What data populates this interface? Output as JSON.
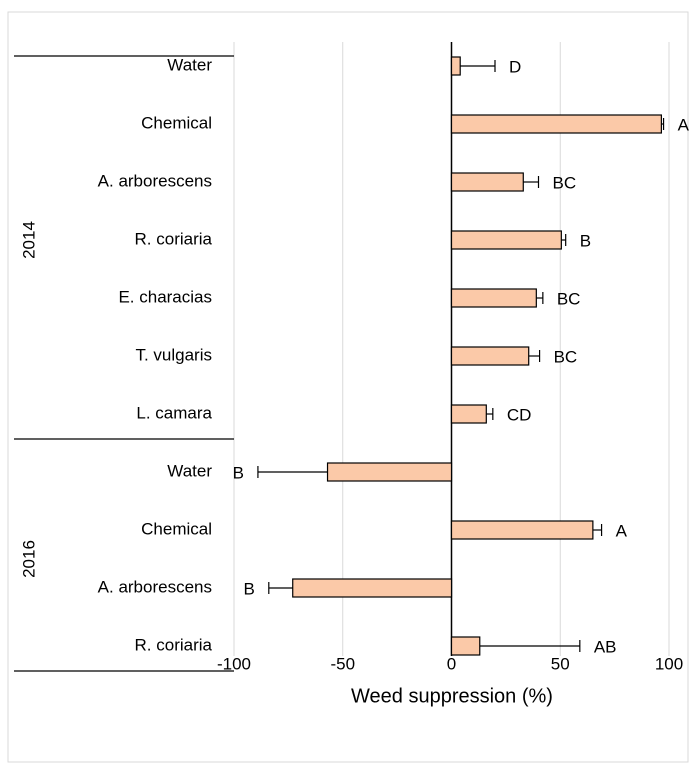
{
  "chart_data": {
    "type": "bar",
    "orientation": "horizontal",
    "x_label": "Weed suppression (%)",
    "xlim": [
      -100,
      100
    ],
    "xticks": [
      -100,
      -50,
      0,
      50,
      100
    ],
    "grid": true,
    "color": "#fbc9a8",
    "groups": [
      {
        "label": "2014",
        "categories": [
          "Water",
          "Chemical",
          "A. arborescens",
          "R. coriaria",
          "E. characias",
          "T. vulgaris",
          "L. camara"
        ],
        "values": [
          4,
          96.5,
          33,
          50.5,
          39,
          35.5,
          16
        ],
        "errors": [
          16,
          1,
          7,
          2,
          3,
          5,
          3
        ],
        "letters": [
          "D",
          "A",
          "BC",
          "B",
          "BC",
          "BC",
          "CD"
        ]
      },
      {
        "label": "2016",
        "categories": [
          "Water",
          "Chemical",
          "A. arborescens",
          "R. coriaria"
        ],
        "values": [
          -57,
          65,
          -73,
          13
        ],
        "errors": [
          32,
          4,
          11,
          46
        ],
        "letters": [
          "B",
          "A",
          "B",
          "AB"
        ]
      }
    ]
  }
}
